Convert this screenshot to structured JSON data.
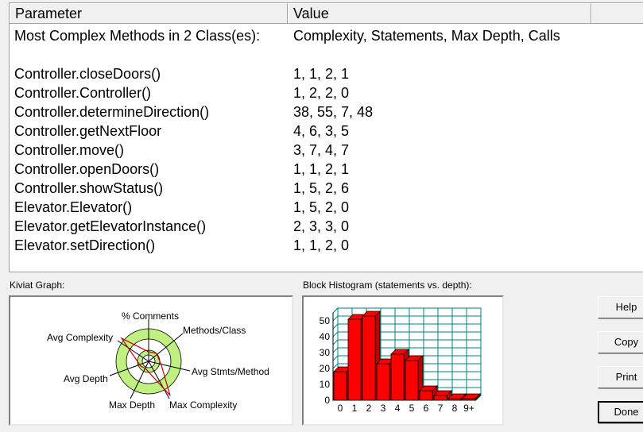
{
  "table": {
    "headers": {
      "parameter": "Parameter",
      "value": "Value"
    },
    "summary": {
      "parameter": "Most Complex Methods in 2 Class(es):",
      "value": "Complexity, Statements, Max Depth, Calls"
    },
    "rows": [
      {
        "parameter": "Controller.closeDoors()",
        "value": "1, 1, 2, 1"
      },
      {
        "parameter": "Controller.Controller()",
        "value": "1, 2, 2, 0"
      },
      {
        "parameter": "Controller.determineDirection()",
        "value": "38, 55, 7, 48"
      },
      {
        "parameter": "Controller.getNextFloor",
        "value": "4, 6, 3, 5"
      },
      {
        "parameter": "Controller.move()",
        "value": "3, 7, 4, 7"
      },
      {
        "parameter": "Controller.openDoors()",
        "value": "1, 1, 2, 1"
      },
      {
        "parameter": "Controller.showStatus()",
        "value": "1, 5, 2, 6"
      },
      {
        "parameter": "Elevator.Elevator()",
        "value": "1, 5, 2, 0"
      },
      {
        "parameter": "Elevator.getElevatorInstance()",
        "value": "2, 3, 3, 0"
      },
      {
        "parameter": "Elevator.setDirection()",
        "value": "1, 1, 2, 0"
      }
    ]
  },
  "kiviat": {
    "title": "Kiviat Graph:",
    "axes": [
      "% Comments",
      "Methods/Class",
      "Avg Stmts/Method",
      "Max Complexity",
      "Max Depth",
      "Avg Depth",
      "Avg Complexity"
    ]
  },
  "histogram": {
    "title": "Block Histogram (statements vs. depth):",
    "chart_data": {
      "type": "bar",
      "categories": [
        "0",
        "1",
        "2",
        "3",
        "4",
        "5",
        "6",
        "7",
        "8",
        "9+"
      ],
      "values": [
        18,
        51,
        53,
        23,
        29,
        25,
        6,
        3,
        1,
        1
      ],
      "yticks": [
        "0",
        "10",
        "20",
        "30",
        "40",
        "50"
      ],
      "ylim": [
        0,
        55
      ],
      "grid": true,
      "bar_color": "#ff0000"
    }
  },
  "buttons": {
    "help": "Help",
    "copy": "Copy",
    "print": "Print",
    "done": "Done"
  },
  "colors": {
    "kiviat_ring": "#c0f080",
    "kiviat_line": "#c00000",
    "grid_teal": "#008080"
  }
}
